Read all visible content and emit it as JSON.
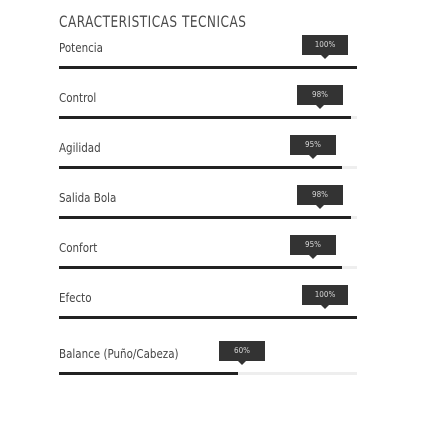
{
  "title": "CARACTERISTICAS TECNICAS",
  "features": [
    {
      "label": "Potencia",
      "value": 100,
      "badge": "100%"
    },
    {
      "label": "Control",
      "value": 98,
      "badge": "98%"
    },
    {
      "label": "Agilidad",
      "value": 95,
      "badge": "95%"
    },
    {
      "label": "Salida Bola",
      "value": 98,
      "badge": "98%"
    },
    {
      "label": "Confort",
      "value": 95,
      "badge": "95%"
    },
    {
      "label": "Efecto",
      "value": 100,
      "badge": "100%"
    },
    {
      "label": "Balance (Puño/Cabeza)",
      "value": 60,
      "badge": "60%"
    }
  ],
  "colors": {
    "bar_fill": "#222222",
    "bar_track": "#eeeeee",
    "badge_bg": "#333333",
    "badge_text": "#d9d9d9"
  }
}
